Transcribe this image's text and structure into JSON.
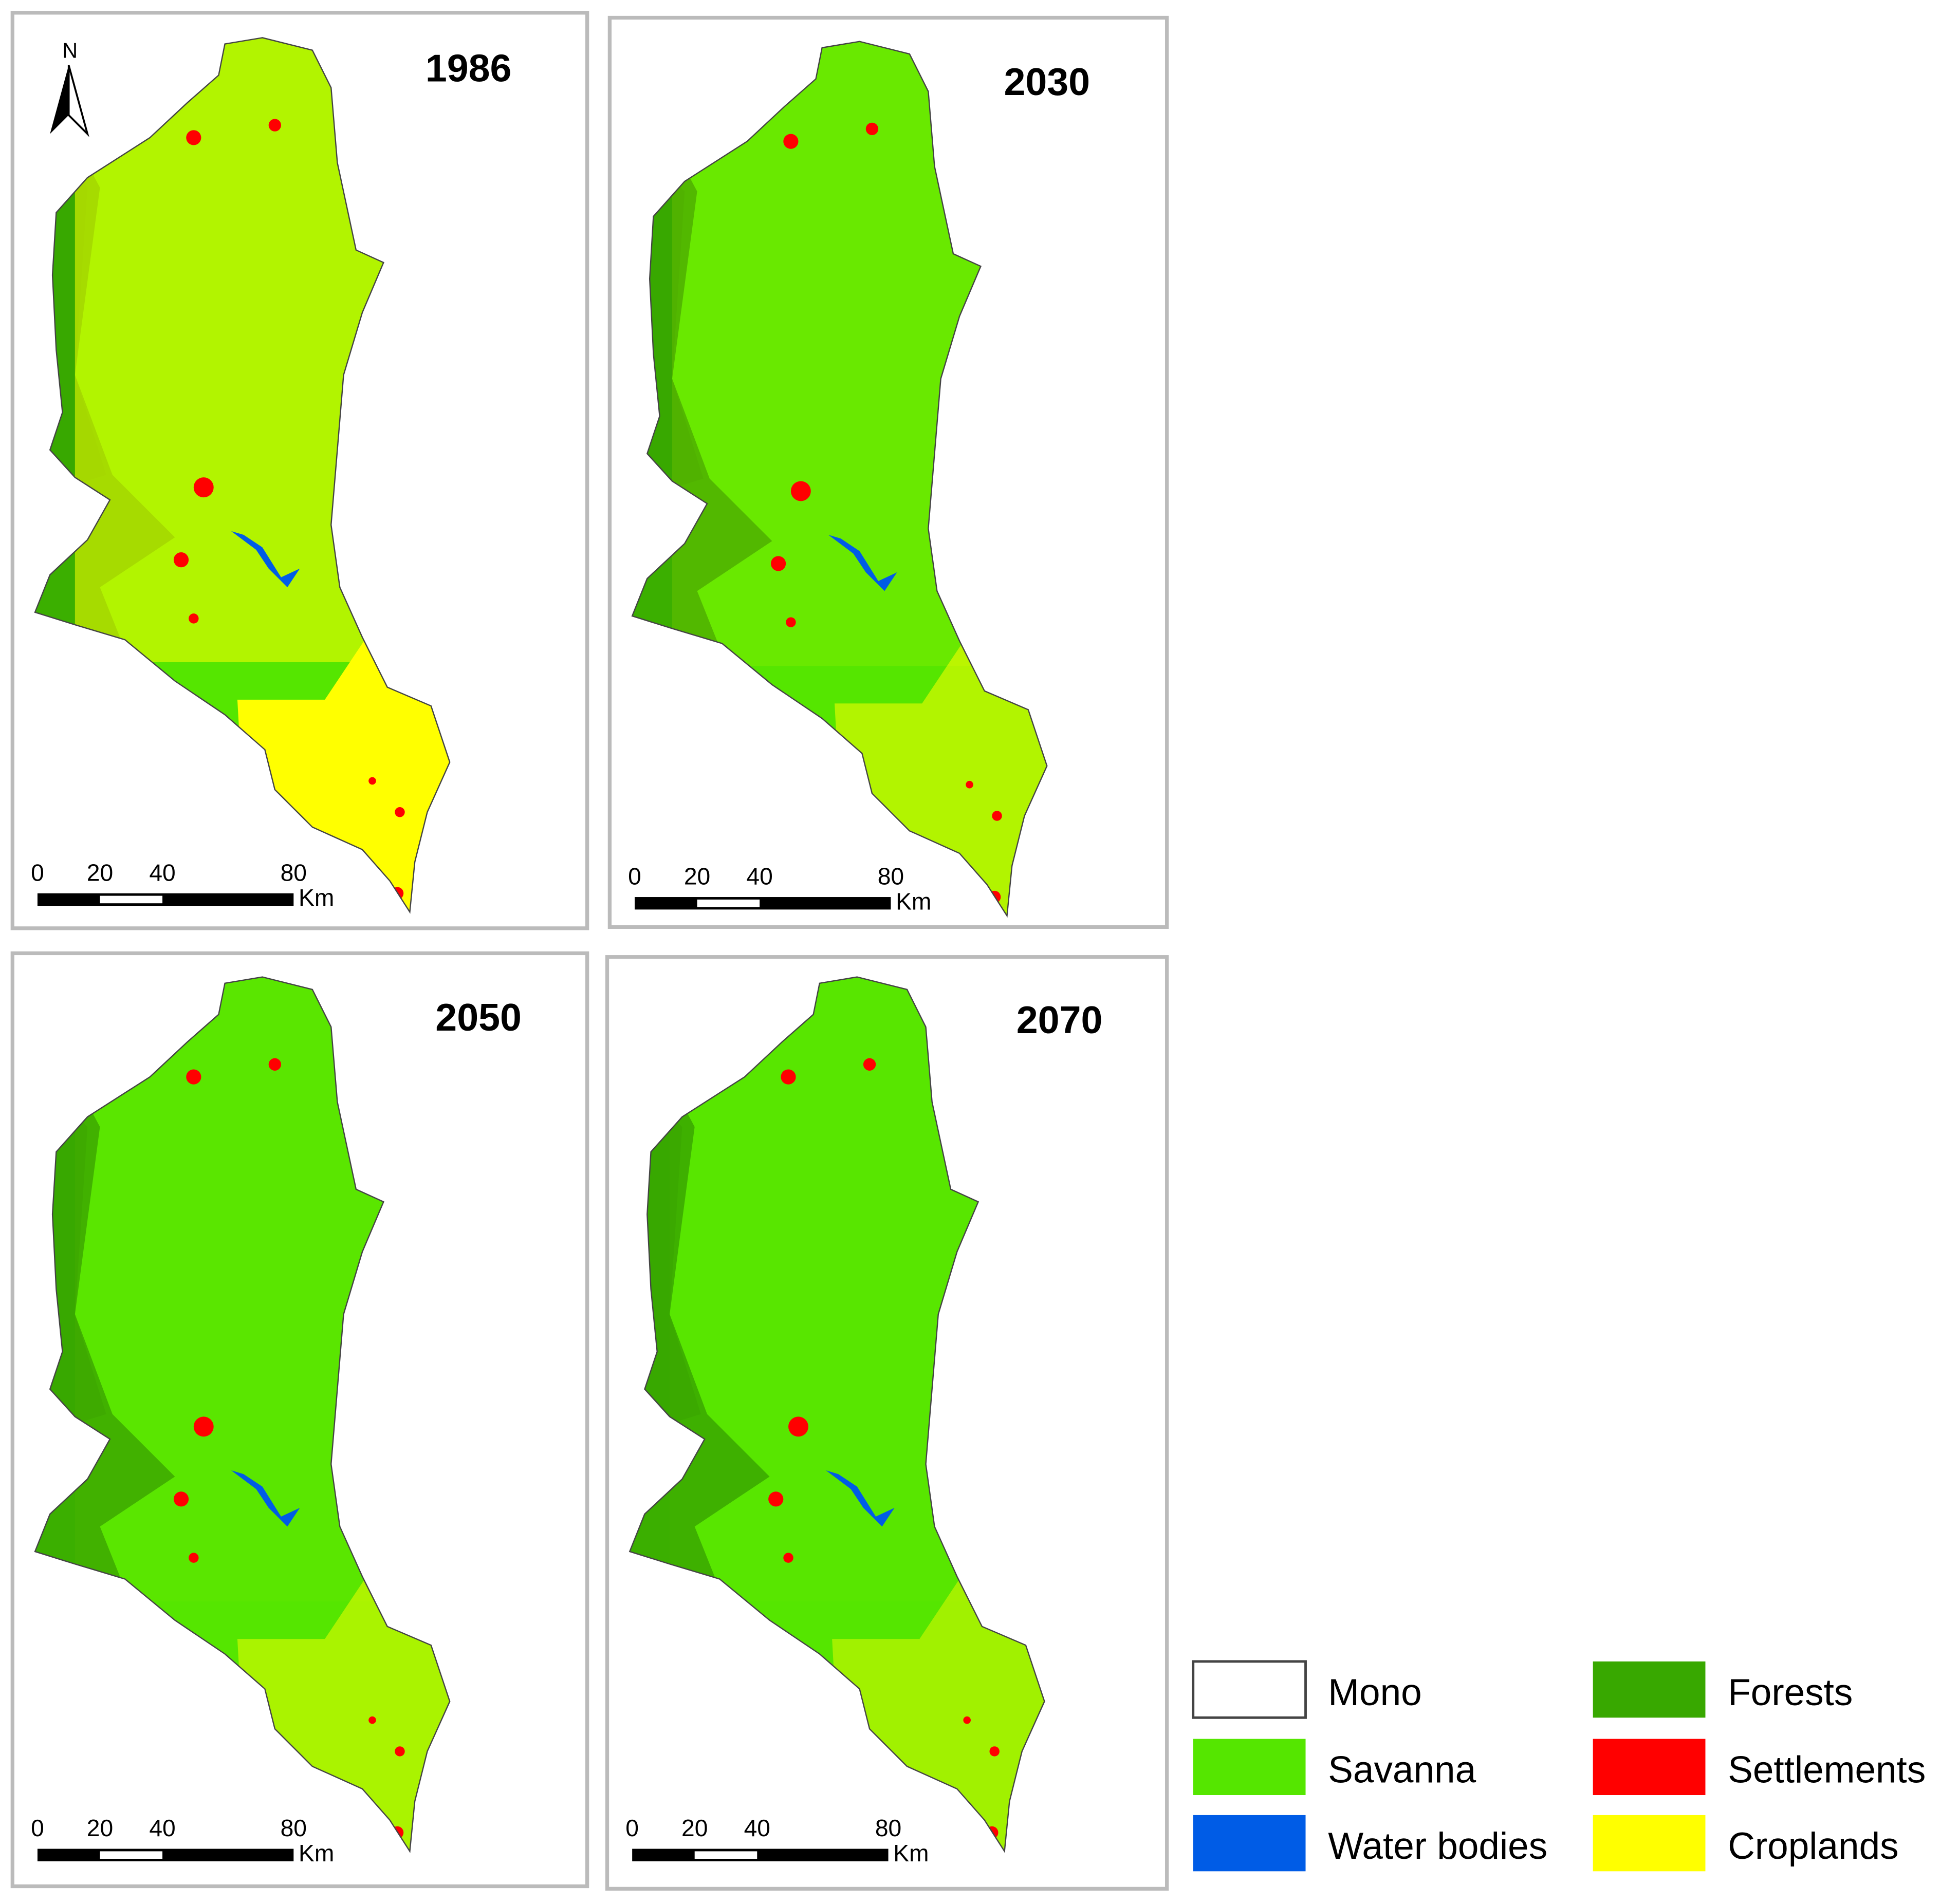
{
  "north": "N",
  "panels": [
    {
      "title": "1986",
      "scale_labels": [
        "0",
        "20",
        "40",
        "80"
      ],
      "unit": "Km"
    },
    {
      "title": "2030",
      "scale_labels": [
        "0",
        "20",
        "40",
        "80"
      ],
      "unit": "Km"
    },
    {
      "title": "2050",
      "scale_labels": [
        "0",
        "20",
        "40",
        "80"
      ],
      "unit": "Km"
    },
    {
      "title": "2070",
      "scale_labels": [
        "0",
        "20",
        "40",
        "80"
      ],
      "unit": "Km"
    }
  ],
  "legend": [
    {
      "label": "Mono",
      "color": "#ffffff"
    },
    {
      "label": "Forests",
      "color": "#38a800"
    },
    {
      "label": "Savanna",
      "color": "#55e600"
    },
    {
      "label": "Settlements",
      "color": "#ff0000"
    },
    {
      "label": "Water bodies",
      "color": "#005ce6"
    },
    {
      "label": "Croplands",
      "color": "#ffff00"
    }
  ]
}
